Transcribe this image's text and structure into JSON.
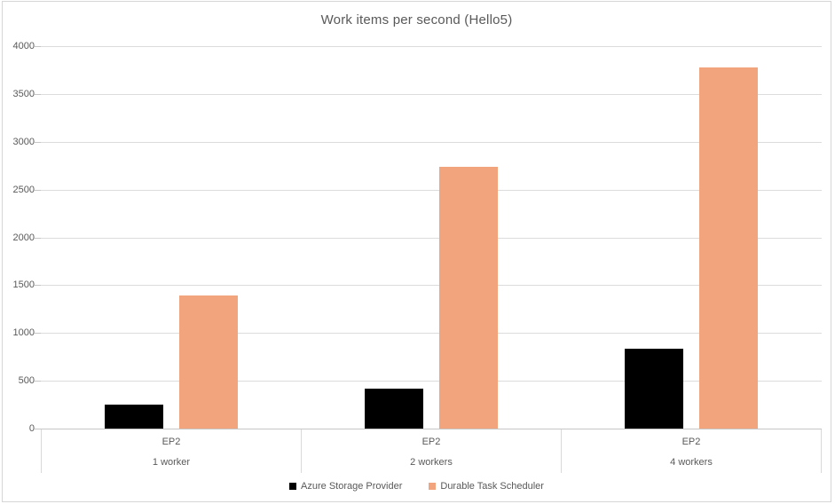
{
  "window": {
    "background": "#FFFFFF",
    "border_color": "#D6D6D6"
  },
  "chart_data": {
    "type": "bar",
    "title": "Work items per second (Hello5)",
    "title_color": "#595959",
    "categories": [
      {
        "group": "EP2",
        "sub": "1 worker"
      },
      {
        "group": "EP2",
        "sub": "2 workers"
      },
      {
        "group": "EP2",
        "sub": "4 workers"
      }
    ],
    "series": [
      {
        "name": "Azure Storage Provider",
        "color": "#000000",
        "values": [
          250,
          415,
          835
        ]
      },
      {
        "name": "Durable Task Scheduler",
        "color": "#F2A47D",
        "values": [
          1390,
          2740,
          3780
        ]
      }
    ],
    "xlabel": "",
    "ylabel": "",
    "ylim": [
      0,
      4000
    ],
    "ytick_interval": 500,
    "yticks": [
      0,
      500,
      1000,
      1500,
      2000,
      2500,
      3000,
      3500,
      4000
    ],
    "grid": true,
    "gridline_color": "#DCDCDC",
    "axis_line_color": "#C6C6C6",
    "tick_label_color": "#595959",
    "legend_position": "bottom"
  }
}
